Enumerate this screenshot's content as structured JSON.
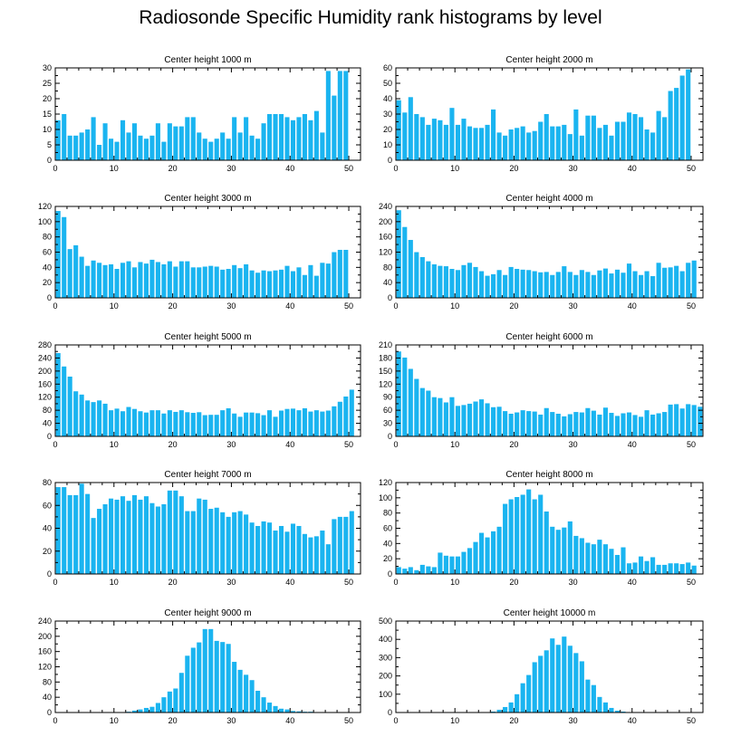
{
  "page_title": "Radiosonde Specific Humidity rank histograms by level",
  "colors": {
    "bar": "#1ab4f0",
    "axis": "#000000"
  },
  "chart_data": [
    {
      "type": "bar",
      "title": "Center height 1000 m",
      "xlim": [
        0,
        52
      ],
      "xticks": [
        0,
        10,
        20,
        30,
        40,
        50
      ],
      "ylim": [
        0,
        30
      ],
      "yticks": [
        0,
        5,
        10,
        15,
        20,
        25,
        30
      ],
      "values": [
        13,
        15,
        8,
        8,
        9,
        10,
        14,
        5,
        12,
        7,
        6,
        13,
        9,
        12,
        8,
        7,
        8,
        12,
        6,
        12,
        11,
        11,
        14,
        14,
        9,
        7,
        6,
        7,
        9,
        7,
        14,
        9,
        14,
        8,
        7,
        12,
        15,
        15,
        15,
        14,
        13,
        14,
        15,
        13,
        16,
        9,
        29,
        21,
        29,
        29
      ]
    },
    {
      "type": "bar",
      "title": "Center height 2000 m",
      "xlim": [
        0,
        52
      ],
      "xticks": [
        0,
        10,
        20,
        30,
        40,
        50
      ],
      "ylim": [
        0,
        60
      ],
      "yticks": [
        0,
        10,
        20,
        30,
        40,
        50,
        60
      ],
      "values": [
        39,
        31,
        41,
        30,
        28,
        23,
        27,
        26,
        23,
        34,
        23,
        27,
        22,
        21,
        21,
        23,
        33,
        18,
        16,
        20,
        21,
        22,
        18,
        19,
        25,
        30,
        22,
        22,
        23,
        17,
        33,
        16,
        29,
        29,
        21,
        23,
        16,
        25,
        25,
        31,
        30,
        28,
        20,
        18,
        32,
        28,
        45,
        47,
        55,
        59
      ]
    },
    {
      "type": "bar",
      "title": "Center height 3000 m",
      "xlim": [
        0,
        52
      ],
      "xticks": [
        0,
        10,
        20,
        30,
        40,
        50
      ],
      "ylim": [
        0,
        120
      ],
      "yticks": [
        0,
        20,
        40,
        60,
        80,
        100,
        120
      ],
      "values": [
        114,
        106,
        64,
        69,
        54,
        42,
        49,
        46,
        43,
        44,
        38,
        46,
        48,
        40,
        47,
        45,
        50,
        47,
        44,
        48,
        41,
        48,
        48,
        40,
        40,
        41,
        42,
        41,
        37,
        38,
        43,
        39,
        44,
        36,
        33,
        36,
        35,
        36,
        37,
        42,
        35,
        40,
        30,
        43,
        29,
        46,
        45,
        60,
        63,
        63
      ]
    },
    {
      "type": "bar",
      "title": "Center height 4000 m",
      "xlim": [
        0,
        52
      ],
      "xticks": [
        0,
        10,
        20,
        30,
        40,
        50
      ],
      "ylim": [
        0,
        240
      ],
      "yticks": [
        0,
        40,
        80,
        120,
        160,
        200,
        240
      ],
      "values": [
        230,
        186,
        152,
        120,
        107,
        96,
        88,
        84,
        83,
        76,
        73,
        86,
        92,
        81,
        70,
        58,
        62,
        73,
        60,
        81,
        76,
        74,
        73,
        70,
        67,
        68,
        60,
        68,
        83,
        68,
        60,
        73,
        68,
        60,
        72,
        77,
        64,
        74,
        66,
        90,
        70,
        60,
        70,
        57,
        92,
        79,
        80,
        84,
        70,
        92,
        98
      ]
    },
    {
      "type": "bar",
      "title": "Center height 5000 m",
      "xlim": [
        0,
        52
      ],
      "xticks": [
        0,
        10,
        20,
        30,
        40,
        50
      ],
      "ylim": [
        0,
        280
      ],
      "yticks": [
        0,
        40,
        80,
        120,
        160,
        200,
        240,
        280
      ],
      "values": [
        255,
        214,
        183,
        138,
        128,
        110,
        105,
        110,
        100,
        80,
        85,
        77,
        90,
        84,
        77,
        73,
        80,
        80,
        70,
        80,
        75,
        80,
        74,
        72,
        74,
        65,
        66,
        66,
        80,
        86,
        70,
        60,
        73,
        73,
        71,
        65,
        80,
        60,
        79,
        84,
        85,
        80,
        86,
        76,
        80,
        76,
        79,
        92,
        106,
        122,
        143
      ]
    },
    {
      "type": "bar",
      "title": "Center height 6000 m",
      "xlim": [
        0,
        52
      ],
      "xticks": [
        0,
        10,
        20,
        30,
        40,
        50
      ],
      "ylim": [
        0,
        210
      ],
      "yticks": [
        0,
        30,
        60,
        90,
        120,
        150,
        180,
        210
      ],
      "values": [
        195,
        181,
        155,
        132,
        111,
        105,
        90,
        88,
        78,
        90,
        70,
        72,
        75,
        80,
        85,
        76,
        67,
        68,
        58,
        52,
        55,
        60,
        58,
        57,
        50,
        65,
        56,
        52,
        46,
        51,
        56,
        55,
        65,
        59,
        50,
        66,
        54,
        47,
        53,
        55,
        49,
        45,
        60,
        50,
        53,
        56,
        73,
        74,
        64,
        74,
        72,
        68
      ]
    },
    {
      "type": "bar",
      "title": "Center height 7000 m",
      "xlim": [
        0,
        52
      ],
      "xticks": [
        0,
        10,
        20,
        30,
        40,
        50
      ],
      "ylim": [
        0,
        80
      ],
      "yticks": [
        0,
        20,
        40,
        60,
        80
      ],
      "values": [
        76,
        76,
        69,
        69,
        79,
        70,
        49,
        57,
        61,
        66,
        65,
        68,
        64,
        69,
        65,
        68,
        62,
        59,
        61,
        73,
        73,
        68,
        55,
        55,
        66,
        65,
        57,
        58,
        54,
        50,
        54,
        55,
        52,
        45,
        42,
        46,
        45,
        38,
        42,
        37,
        44,
        42,
        35,
        32,
        33,
        38,
        26,
        48,
        50,
        50,
        55
      ]
    },
    {
      "type": "bar",
      "title": "Center height 8000 m",
      "xlim": [
        0,
        52
      ],
      "xticks": [
        0,
        10,
        20,
        30,
        40,
        50
      ],
      "ylim": [
        0,
        120
      ],
      "yticks": [
        0,
        20,
        40,
        60,
        80,
        100,
        120
      ],
      "values": [
        9,
        7,
        9,
        5,
        12,
        10,
        9,
        28,
        24,
        23,
        23,
        29,
        34,
        42,
        54,
        48,
        56,
        62,
        92,
        98,
        101,
        104,
        111,
        98,
        104,
        82,
        62,
        58,
        61,
        69,
        50,
        47,
        41,
        39,
        45,
        39,
        33,
        25,
        35,
        14,
        15,
        23,
        17,
        22,
        12,
        12,
        14,
        14,
        13,
        15,
        11
      ]
    },
    {
      "type": "bar",
      "title": "Center height 9000 m",
      "xlim": [
        0,
        52
      ],
      "xticks": [
        0,
        10,
        20,
        30,
        40,
        50
      ],
      "ylim": [
        0,
        240
      ],
      "yticks": [
        0,
        40,
        80,
        120,
        160,
        200,
        240
      ],
      "values": [
        0,
        0,
        0,
        0,
        0,
        0,
        0,
        0,
        0,
        0,
        1,
        1,
        2,
        5,
        8,
        12,
        15,
        25,
        40,
        55,
        63,
        104,
        149,
        170,
        184,
        219,
        219,
        188,
        185,
        180,
        133,
        112,
        99,
        85,
        57,
        40,
        26,
        17,
        10,
        8,
        4,
        3,
        2,
        2,
        1,
        1,
        1,
        1,
        1,
        1,
        0
      ]
    },
    {
      "type": "bar",
      "title": "Center height 10000 m",
      "xlim": [
        0,
        52
      ],
      "xticks": [
        0,
        10,
        20,
        30,
        40,
        50
      ],
      "ylim": [
        0,
        500
      ],
      "yticks": [
        0,
        100,
        200,
        300,
        400,
        500
      ],
      "values": [
        0,
        0,
        0,
        0,
        0,
        0,
        0,
        0,
        0,
        0,
        0,
        0,
        0,
        0,
        0,
        0,
        5,
        15,
        30,
        55,
        100,
        160,
        205,
        275,
        310,
        340,
        405,
        370,
        415,
        365,
        325,
        280,
        180,
        150,
        85,
        55,
        25,
        10,
        5,
        2,
        1,
        0,
        0,
        0,
        0,
        0,
        0,
        0,
        0,
        0,
        0
      ]
    }
  ]
}
